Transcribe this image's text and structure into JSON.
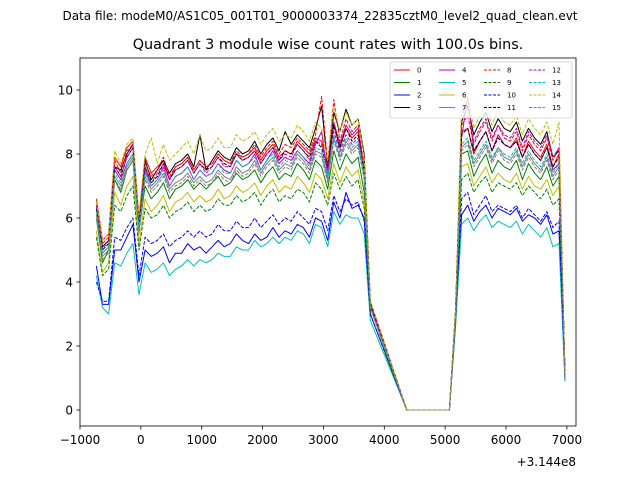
{
  "figure": {
    "suptitle": "Data file: modeM0/AS1C05_001T01_9000003374_22835cztM0_level2_quad_clean.evt"
  },
  "chart_data": {
    "type": "line",
    "title": "Quadrant 3 module wise count rates with 100.0s bins.",
    "xlabel": "",
    "ylabel": "",
    "x_offset_label": "+3.144e8",
    "xlim": [
      -1000,
      7150
    ],
    "ylim": [
      -0.5,
      11.0
    ],
    "xticks": [
      -1000,
      0,
      1000,
      2000,
      3000,
      4000,
      5000,
      6000,
      7000
    ],
    "xtick_labels": [
      "−1000",
      "0",
      "1000",
      "2000",
      "3000",
      "4000",
      "5000",
      "6000",
      "7000"
    ],
    "yticks": [
      0,
      2,
      4,
      6,
      8,
      10
    ],
    "ytick_labels": [
      "0",
      "2",
      "4",
      "6",
      "8",
      "10"
    ],
    "x_start": -730,
    "x_step": 100,
    "gap_range": [
      4370,
      5070
    ],
    "legend_position": "top-right",
    "legend_columns": 4,
    "series": [
      {
        "name": "0",
        "color": "#ff0000",
        "dash": "solid",
        "seg1": [
          6.6,
          5.3,
          5.5,
          7.9,
          7.6,
          8.2,
          8.4,
          6.0,
          7.9,
          7.4,
          7.6,
          7.8,
          7.2,
          7.6,
          7.7,
          7.9,
          7.5,
          7.8,
          7.6,
          7.7,
          8.0,
          7.8,
          7.7,
          8.0,
          7.9,
          8.0,
          8.2,
          7.8,
          8.1,
          8.3,
          7.9,
          8.1,
          8.0,
          8.4,
          8.2,
          8.0,
          8.5,
          8.4,
          7.6,
          8.9,
          8.2,
          8.8,
          8.5,
          8.7,
          7.5,
          3.4
        ],
        "seg2": [
          3.1,
          8.7,
          8.8,
          8.0,
          8.4,
          8.7,
          8.1,
          8.6,
          8.3,
          8.2,
          8.5,
          7.9,
          8.4,
          8.1,
          7.9,
          8.3,
          7.6,
          8.0,
          1.1
        ]
      },
      {
        "name": "1",
        "color": "#008000",
        "dash": "solid",
        "seg1": [
          6.0,
          4.6,
          5.0,
          7.2,
          6.8,
          7.5,
          7.8,
          5.6,
          7.0,
          6.6,
          6.8,
          7.1,
          6.6,
          6.9,
          7.0,
          7.2,
          6.9,
          7.1,
          6.9,
          7.1,
          7.3,
          7.0,
          7.1,
          7.4,
          7.2,
          7.3,
          7.5,
          7.1,
          7.4,
          7.6,
          7.2,
          7.4,
          7.3,
          7.7,
          7.5,
          7.2,
          7.8,
          7.6,
          6.9,
          8.1,
          7.5,
          8.0,
          7.7,
          7.9,
          6.8,
          3.2
        ],
        "seg2": [
          2.9,
          8.0,
          8.1,
          7.3,
          7.7,
          8.0,
          7.4,
          7.8,
          7.6,
          7.5,
          7.8,
          7.2,
          7.7,
          7.4,
          7.2,
          7.6,
          7.0,
          7.3,
          1.0
        ]
      },
      {
        "name": "2",
        "color": "#0000ff",
        "dash": "solid",
        "seg1": [
          4.5,
          3.3,
          3.3,
          5.0,
          5.0,
          5.4,
          5.8,
          4.0,
          5.0,
          4.8,
          4.9,
          5.1,
          4.6,
          4.9,
          4.9,
          5.2,
          5.0,
          5.1,
          4.9,
          5.1,
          5.3,
          5.1,
          5.2,
          5.5,
          5.3,
          5.2,
          5.5,
          5.3,
          5.4,
          5.7,
          5.4,
          5.6,
          5.5,
          5.8,
          5.7,
          5.4,
          6.0,
          5.9,
          5.3,
          6.5,
          6.0,
          6.8,
          6.3,
          6.4,
          6.0,
          3.0
        ],
        "seg2": [
          2.7,
          6.1,
          6.4,
          5.9,
          6.2,
          6.4,
          6.0,
          6.3,
          6.2,
          6.1,
          6.3,
          5.9,
          6.1,
          6.0,
          5.8,
          6.1,
          5.5,
          5.6,
          0.9
        ]
      },
      {
        "name": "3",
        "color": "#000000",
        "dash": "solid",
        "seg1": [
          6.4,
          5.1,
          5.3,
          7.6,
          7.5,
          8.0,
          8.3,
          5.8,
          7.8,
          7.2,
          7.5,
          7.8,
          7.4,
          7.7,
          7.8,
          8.0,
          7.6,
          8.6,
          7.5,
          7.8,
          8.1,
          7.9,
          7.8,
          8.2,
          8.0,
          8.1,
          8.4,
          8.0,
          8.3,
          8.5,
          8.1,
          8.7,
          8.3,
          8.6,
          8.4,
          8.2,
          8.8,
          9.5,
          7.6,
          9.3,
          8.7,
          9.4,
          8.9,
          9.1,
          8.0,
          3.3
        ],
        "seg2": [
          3.0,
          9.0,
          9.5,
          8.6,
          9.0,
          9.3,
          8.7,
          9.1,
          8.8,
          8.7,
          9.0,
          8.4,
          8.8,
          8.5,
          8.3,
          8.7,
          7.9,
          8.1,
          1.1
        ]
      },
      {
        "name": "4",
        "color": "#bf00bf",
        "dash": "solid",
        "seg1": [
          6.3,
          4.9,
          5.1,
          7.5,
          7.2,
          7.7,
          8.0,
          5.7,
          7.5,
          7.0,
          7.2,
          7.6,
          7.0,
          7.3,
          7.4,
          7.6,
          7.2,
          7.5,
          7.3,
          7.4,
          7.7,
          7.5,
          7.4,
          7.8,
          7.6,
          7.7,
          8.0,
          7.5,
          7.8,
          8.1,
          7.7,
          7.9,
          7.8,
          8.1,
          7.9,
          7.7,
          8.3,
          8.7,
          7.3,
          9.0,
          8.3,
          8.9,
          8.6,
          8.8,
          7.5,
          3.3
        ],
        "seg2": [
          3.0,
          8.5,
          9.8,
          8.1,
          8.4,
          8.7,
          8.1,
          8.6,
          8.3,
          8.2,
          8.4,
          7.9,
          8.3,
          8.0,
          7.8,
          8.2,
          7.5,
          7.7,
          1.1
        ]
      },
      {
        "name": "5",
        "color": "#00bfbf",
        "dash": "solid",
        "seg1": [
          4.2,
          3.2,
          3.0,
          4.6,
          4.5,
          4.9,
          5.2,
          3.6,
          4.6,
          4.3,
          4.4,
          4.6,
          4.2,
          4.4,
          4.5,
          4.7,
          4.5,
          4.7,
          4.6,
          4.7,
          4.9,
          4.8,
          4.8,
          5.1,
          5.0,
          5.0,
          5.3,
          5.1,
          5.2,
          5.4,
          5.2,
          5.4,
          5.3,
          5.6,
          5.5,
          5.2,
          5.8,
          5.7,
          5.1,
          6.2,
          5.8,
          6.1,
          6.0,
          6.0,
          5.5,
          2.8
        ],
        "seg2": [
          2.6,
          5.8,
          6.0,
          5.6,
          5.9,
          6.1,
          5.7,
          5.9,
          5.8,
          5.7,
          5.9,
          5.5,
          5.8,
          5.6,
          5.4,
          5.7,
          5.1,
          5.2,
          0.9
        ]
      },
      {
        "name": "6",
        "color": "#bfbf00",
        "dash": "solid",
        "seg1": [
          5.6,
          4.3,
          4.6,
          6.8,
          6.4,
          7.0,
          7.3,
          5.2,
          6.6,
          6.2,
          6.4,
          6.7,
          6.2,
          6.5,
          6.6,
          6.8,
          6.5,
          6.7,
          6.5,
          6.6,
          6.9,
          6.6,
          6.7,
          7.0,
          6.8,
          6.9,
          7.1,
          6.7,
          7.0,
          7.2,
          6.8,
          7.0,
          6.9,
          7.3,
          7.1,
          6.8,
          7.4,
          7.2,
          6.6,
          7.7,
          7.1,
          7.6,
          7.3,
          7.5,
          6.5,
          3.0
        ],
        "seg2": [
          2.8,
          7.6,
          7.7,
          7.0,
          7.3,
          7.6,
          7.1,
          7.4,
          7.2,
          7.1,
          7.4,
          6.9,
          7.3,
          7.0,
          6.9,
          7.2,
          6.7,
          7.0,
          1.0
        ]
      },
      {
        "name": "7",
        "color": "#7f7f7f",
        "dash": "solid",
        "seg1": [
          6.1,
          4.8,
          5.0,
          7.3,
          7.0,
          7.6,
          7.9,
          5.6,
          7.3,
          6.9,
          7.1,
          7.4,
          6.9,
          7.1,
          7.2,
          7.4,
          7.1,
          7.3,
          7.1,
          7.2,
          7.5,
          7.3,
          7.2,
          7.6,
          7.4,
          7.5,
          7.8,
          7.4,
          7.7,
          7.9,
          7.5,
          7.7,
          7.6,
          8.0,
          7.8,
          7.5,
          8.1,
          8.0,
          7.2,
          8.5,
          7.9,
          8.4,
          8.1,
          8.3,
          7.3,
          3.2
        ],
        "seg2": [
          2.9,
          8.2,
          8.4,
          7.7,
          8.0,
          8.3,
          7.8,
          8.2,
          7.9,
          7.8,
          8.1,
          7.6,
          8.0,
          7.7,
          7.5,
          7.9,
          7.3,
          7.6,
          1.0
        ]
      },
      {
        "name": "8",
        "color": "#ff0000",
        "dash": "dashed",
        "seg1": [
          6.5,
          5.2,
          5.4,
          7.8,
          7.4,
          8.1,
          8.3,
          5.9,
          7.7,
          7.3,
          7.5,
          7.9,
          7.3,
          7.6,
          7.7,
          7.9,
          7.5,
          7.8,
          7.6,
          7.7,
          8.0,
          7.8,
          7.7,
          8.1,
          7.9,
          8.0,
          8.3,
          7.9,
          8.2,
          8.4,
          8.0,
          8.3,
          8.2,
          8.5,
          8.3,
          8.1,
          8.6,
          9.8,
          7.7,
          9.7,
          8.4,
          9.1,
          8.7,
          8.9,
          7.6,
          3.4
        ],
        "seg2": [
          3.1,
          8.9,
          9.2,
          8.3,
          8.7,
          9.0,
          8.4,
          8.9,
          8.5,
          8.4,
          8.7,
          8.1,
          8.6,
          8.3,
          8.1,
          8.5,
          7.8,
          8.2,
          1.1
        ]
      },
      {
        "name": "9",
        "color": "#008000",
        "dash": "dashed",
        "seg1": [
          5.4,
          4.2,
          4.4,
          6.4,
          6.2,
          6.7,
          7.0,
          5.0,
          6.3,
          6.0,
          6.1,
          6.4,
          6.0,
          6.2,
          6.3,
          6.5,
          6.2,
          6.4,
          6.2,
          6.3,
          6.6,
          6.4,
          6.4,
          6.7,
          6.5,
          6.6,
          6.8,
          6.4,
          6.7,
          6.9,
          6.5,
          6.7,
          6.6,
          6.9,
          6.8,
          6.5,
          7.1,
          6.9,
          6.4,
          7.4,
          6.9,
          7.3,
          7.0,
          7.2,
          6.3,
          3.0
        ],
        "seg2": [
          2.7,
          7.2,
          7.4,
          6.8,
          7.1,
          7.3,
          6.8,
          7.1,
          7.0,
          6.9,
          7.1,
          6.7,
          7.0,
          6.8,
          6.6,
          6.9,
          6.4,
          6.6,
          1.0
        ]
      },
      {
        "name": "10",
        "color": "#0000ff",
        "dash": "dashed",
        "seg1": [
          4.0,
          3.4,
          3.4,
          5.4,
          5.3,
          5.7,
          6.0,
          4.2,
          5.4,
          5.2,
          5.3,
          5.5,
          5.1,
          5.3,
          5.4,
          5.6,
          5.4,
          5.6,
          5.4,
          5.5,
          5.8,
          5.6,
          5.6,
          5.9,
          5.7,
          5.7,
          6.0,
          5.7,
          5.9,
          6.1,
          5.8,
          6.0,
          5.9,
          6.2,
          6.0,
          5.8,
          6.3,
          6.2,
          5.6,
          6.7,
          6.2,
          6.6,
          6.4,
          6.5,
          5.9,
          3.0
        ],
        "seg2": [
          2.8,
          6.6,
          6.8,
          6.1,
          6.4,
          6.7,
          6.2,
          6.4,
          6.3,
          6.2,
          6.4,
          6.0,
          6.3,
          6.1,
          5.9,
          6.2,
          5.7,
          5.9,
          1.0
        ]
      },
      {
        "name": "11",
        "color": "#000000",
        "dash": "dashed",
        "seg1": [
          6.3,
          5.0,
          5.2,
          7.6,
          7.3,
          7.9,
          8.2,
          5.8,
          7.6,
          7.1,
          7.3,
          7.7,
          7.2,
          7.5,
          7.6,
          7.8,
          7.4,
          7.7,
          7.5,
          7.6,
          7.9,
          7.7,
          7.6,
          8.0,
          7.8,
          7.9,
          8.1,
          7.7,
          8.0,
          8.2,
          7.8,
          8.1,
          8.0,
          8.3,
          8.1,
          7.9,
          8.4,
          8.2,
          7.5,
          8.9,
          8.2,
          8.8,
          8.4,
          8.6,
          7.4,
          3.3
        ],
        "seg2": [
          3.0,
          8.6,
          8.8,
          8.1,
          8.4,
          8.7,
          8.1,
          8.5,
          8.3,
          8.2,
          8.4,
          7.9,
          8.3,
          8.0,
          7.8,
          8.2,
          7.6,
          7.9,
          1.1
        ]
      },
      {
        "name": "12",
        "color": "#bf00bf",
        "dash": "dashed",
        "seg1": [
          6.4,
          5.0,
          5.3,
          7.6,
          7.3,
          7.9,
          8.2,
          5.8,
          7.6,
          7.1,
          7.4,
          7.7,
          7.2,
          7.5,
          7.6,
          7.8,
          7.4,
          7.7,
          7.4,
          7.6,
          7.9,
          7.6,
          7.6,
          8.0,
          7.8,
          7.9,
          8.1,
          7.7,
          8.0,
          8.2,
          7.8,
          8.0,
          7.9,
          8.3,
          8.1,
          7.8,
          8.4,
          8.3,
          7.5,
          8.7,
          8.1,
          8.6,
          8.3,
          8.5,
          7.5,
          3.3
        ],
        "seg2": [
          3.0,
          9.2,
          9.6,
          8.4,
          8.8,
          9.1,
          8.5,
          8.9,
          8.6,
          8.5,
          8.8,
          8.2,
          8.7,
          8.4,
          8.2,
          8.6,
          7.9,
          8.2,
          1.1
        ]
      },
      {
        "name": "13",
        "color": "#00bfbf",
        "dash": "dashed",
        "seg1": [
          6.2,
          4.9,
          5.1,
          7.4,
          7.1,
          7.7,
          8.0,
          5.7,
          7.4,
          7.0,
          7.2,
          7.5,
          7.0,
          7.3,
          7.4,
          7.6,
          7.2,
          7.5,
          7.3,
          7.4,
          7.7,
          7.4,
          7.4,
          7.8,
          7.6,
          7.7,
          7.9,
          7.5,
          7.8,
          8.0,
          7.6,
          7.8,
          7.7,
          8.1,
          7.9,
          7.6,
          8.2,
          8.1,
          7.3,
          8.6,
          8.0,
          8.5,
          8.2,
          8.4,
          7.4,
          3.2
        ],
        "seg2": [
          3.0,
          8.3,
          8.5,
          7.8,
          8.1,
          8.4,
          7.9,
          8.2,
          8.0,
          7.9,
          8.2,
          7.7,
          8.1,
          7.8,
          7.6,
          8.0,
          7.4,
          7.7,
          1.0
        ]
      },
      {
        "name": "14",
        "color": "#bfbf00",
        "dash": "dashed",
        "seg1": [
          6.5,
          5.3,
          5.5,
          8.1,
          7.7,
          8.3,
          8.5,
          6.1,
          8.0,
          8.5,
          7.7,
          8.3,
          7.8,
          8.0,
          8.2,
          8.4,
          8.0,
          8.6,
          8.1,
          8.2,
          8.5,
          8.2,
          8.2,
          8.6,
          8.4,
          8.5,
          8.7,
          8.3,
          8.6,
          8.8,
          8.4,
          8.6,
          8.5,
          8.9,
          8.7,
          8.4,
          9.0,
          8.8,
          7.8,
          9.5,
          8.7,
          9.3,
          8.9,
          9.1,
          7.9,
          3.4
        ],
        "seg2": [
          3.1,
          9.7,
          9.8,
          8.8,
          9.2,
          9.5,
          8.9,
          9.4,
          9.0,
          8.9,
          9.2,
          8.6,
          9.1,
          8.8,
          8.6,
          9.0,
          8.3,
          9.0,
          1.1
        ]
      },
      {
        "name": "15",
        "color": "#7f7f7f",
        "dash": "dashed",
        "seg1": [
          6.0,
          4.7,
          4.9,
          7.2,
          6.9,
          7.5,
          7.8,
          5.5,
          7.2,
          6.8,
          7.0,
          7.3,
          6.8,
          7.0,
          7.1,
          7.3,
          7.0,
          7.2,
          7.0,
          7.1,
          7.4,
          7.2,
          7.1,
          7.5,
          7.3,
          7.4,
          7.7,
          7.3,
          7.6,
          7.8,
          7.4,
          7.6,
          7.5,
          7.9,
          7.7,
          7.4,
          8.0,
          7.9,
          7.1,
          8.4,
          7.8,
          8.3,
          8.0,
          8.2,
          7.2,
          3.2
        ],
        "seg2": [
          2.9,
          8.1,
          8.3,
          7.6,
          7.9,
          8.2,
          7.7,
          8.1,
          7.8,
          7.7,
          8.0,
          7.5,
          7.9,
          7.6,
          7.4,
          7.8,
          7.2,
          7.5,
          1.0
        ]
      }
    ]
  }
}
